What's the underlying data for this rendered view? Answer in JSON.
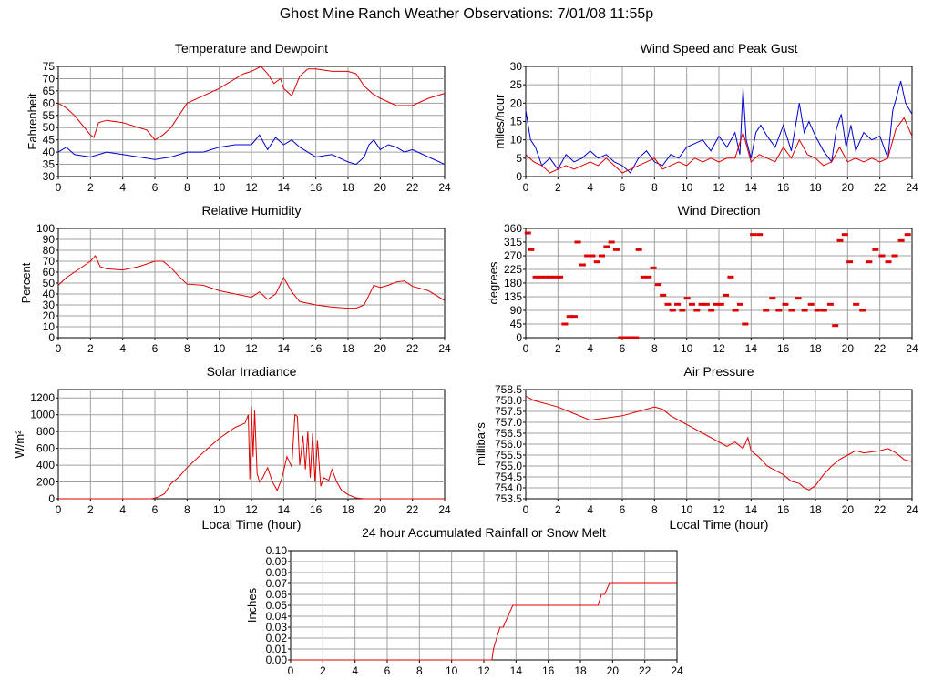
{
  "page_title": "Ghost Mine Ranch Weather Observations: 7/01/08 11:55p",
  "colors": {
    "red": "#e00000",
    "blue": "#0000d0",
    "grid": "#a0a0a0",
    "grid_minor": "#c8c8c8"
  },
  "chart_data": [
    {
      "id": "temperature",
      "type": "line",
      "title": "Temperature and Dewpoint",
      "xlabel": "",
      "ylabel": "Fahrenheit",
      "xlim": [
        0,
        24
      ],
      "ylim": [
        30,
        75
      ],
      "xticks": [
        0,
        2,
        4,
        6,
        8,
        10,
        12,
        14,
        16,
        18,
        20,
        22,
        24
      ],
      "yticks": [
        30,
        35,
        40,
        45,
        50,
        55,
        60,
        65,
        70,
        75
      ],
      "ytick_labels": [
        "30",
        "35",
        "40",
        "45",
        "50",
        "55",
        "60",
        "65",
        "70",
        "75"
      ],
      "grid": true,
      "series": [
        {
          "color": "#e00000",
          "x": [
            0,
            0.5,
            1,
            1.5,
            2,
            2.2,
            2.5,
            3,
            4,
            5,
            5.5,
            6,
            6.5,
            7,
            7.5,
            8,
            9,
            10,
            11,
            11.5,
            12,
            12.3,
            12.6,
            13,
            13.4,
            13.8,
            14,
            14.5,
            15,
            15.5,
            16,
            17,
            18,
            18.5,
            19,
            19.5,
            20,
            21,
            22,
            23,
            24
          ],
          "y": [
            60,
            58,
            55,
            51,
            47,
            46,
            52,
            53,
            52,
            50,
            49,
            45,
            47,
            50,
            55,
            60,
            63,
            66,
            70,
            72,
            73,
            74,
            75,
            72,
            68,
            70,
            66,
            63,
            71,
            74,
            74,
            73,
            73,
            72,
            67,
            64,
            62,
            59,
            59,
            62,
            64
          ]
        },
        {
          "color": "#0000d0",
          "x": [
            0,
            0.5,
            1,
            2,
            3,
            4,
            5,
            6,
            7,
            8,
            9,
            10,
            11,
            12,
            12.5,
            13,
            13.5,
            14,
            14.5,
            15,
            16,
            17,
            18,
            18.5,
            19,
            19.3,
            19.6,
            20,
            20.5,
            21,
            21.5,
            22,
            23,
            24
          ],
          "y": [
            40,
            42,
            39,
            38,
            40,
            39,
            38,
            37,
            38,
            40,
            40,
            42,
            43,
            43,
            47,
            41,
            46,
            43,
            45,
            42,
            38,
            39,
            36,
            35,
            38,
            43,
            45,
            41,
            43,
            42,
            40,
            41,
            38,
            35
          ]
        }
      ]
    },
    {
      "id": "wind",
      "type": "line",
      "title": "Wind Speed and Peak Gust",
      "xlabel": "",
      "ylabel": "miles/hour",
      "xlim": [
        0,
        24
      ],
      "ylim": [
        0,
        30
      ],
      "xticks": [
        0,
        2,
        4,
        6,
        8,
        10,
        12,
        14,
        16,
        18,
        20,
        22,
        24
      ],
      "yticks": [
        0,
        5,
        10,
        15,
        20,
        25,
        30
      ],
      "ytick_labels": [
        "0",
        "5",
        "10",
        "15",
        "20",
        "25",
        "30"
      ],
      "grid": true,
      "series": [
        {
          "color": "#0000d0",
          "x": [
            0,
            0.3,
            0.6,
            1,
            1.5,
            2,
            2.5,
            3,
            3.5,
            4,
            4.5,
            5,
            5.5,
            6,
            6.5,
            7,
            7.5,
            8,
            8.5,
            9,
            9.5,
            10,
            10.5,
            11,
            11.5,
            12,
            12.5,
            13,
            13.3,
            13.5,
            13.7,
            14,
            14.3,
            14.6,
            15,
            15.5,
            16,
            16.5,
            17,
            17.3,
            17.6,
            18,
            18.5,
            19,
            19.3,
            19.6,
            19.9,
            20.2,
            20.5,
            21,
            21.5,
            22,
            22.5,
            22.8,
            23,
            23.3,
            23.6,
            24
          ],
          "y": [
            18,
            10,
            8,
            3,
            5,
            2,
            6,
            4,
            5,
            7,
            5,
            6,
            4,
            3,
            1,
            5,
            7,
            4,
            3,
            6,
            5,
            8,
            9,
            10,
            7,
            11,
            8,
            12,
            6,
            24,
            10,
            5,
            12,
            14,
            11,
            8,
            14,
            7,
            20,
            12,
            15,
            11,
            7,
            4,
            13,
            17,
            8,
            14,
            7,
            12,
            10,
            11,
            5,
            18,
            21,
            26,
            20,
            17
          ]
        },
        {
          "color": "#e00000",
          "x": [
            0,
            0.5,
            1,
            1.5,
            2,
            2.5,
            3,
            3.5,
            4,
            4.5,
            5,
            5.5,
            6,
            6.5,
            7,
            7.5,
            8,
            8.5,
            9,
            9.5,
            10,
            10.5,
            11,
            11.5,
            12,
            12.5,
            13,
            13.5,
            14,
            14.5,
            15,
            15.5,
            16,
            16.5,
            17,
            17.5,
            18,
            18.5,
            19,
            19.5,
            20,
            20.5,
            21,
            21.5,
            22,
            22.5,
            23,
            23.5,
            24
          ],
          "y": [
            6,
            4,
            3,
            1,
            2,
            3,
            2,
            3,
            4,
            3,
            5,
            3,
            1,
            2,
            3,
            4,
            5,
            2,
            3,
            4,
            3,
            5,
            4,
            5,
            4,
            5,
            5,
            12,
            4,
            6,
            5,
            4,
            8,
            5,
            10,
            6,
            5,
            3,
            4,
            8,
            4,
            5,
            4,
            5,
            4,
            5,
            13,
            16,
            11
          ]
        }
      ]
    },
    {
      "id": "humidity",
      "type": "line",
      "title": "Relative Humidity",
      "xlabel": "",
      "ylabel": "Percent",
      "xlim": [
        0,
        24
      ],
      "ylim": [
        0,
        100
      ],
      "xticks": [
        0,
        2,
        4,
        6,
        8,
        10,
        12,
        14,
        16,
        18,
        20,
        22,
        24
      ],
      "yticks": [
        0,
        10,
        20,
        30,
        40,
        50,
        60,
        70,
        80,
        90,
        100
      ],
      "ytick_labels": [
        "0",
        "10",
        "20",
        "30",
        "40",
        "50",
        "60",
        "70",
        "80",
        "90",
        "100"
      ],
      "grid": true,
      "series": [
        {
          "color": "#e00000",
          "x": [
            0,
            0.5,
            1,
            1.5,
            2,
            2.3,
            2.6,
            3,
            4,
            5,
            6,
            6.5,
            7,
            7.5,
            8,
            9,
            10,
            11,
            12,
            12.5,
            13,
            13.5,
            14,
            14.5,
            15,
            16,
            17,
            18,
            18.5,
            19,
            19.3,
            19.6,
            20,
            20.5,
            21,
            21.5,
            22,
            23,
            24
          ],
          "y": [
            48,
            55,
            60,
            65,
            70,
            75,
            65,
            63,
            62,
            65,
            70,
            70,
            64,
            56,
            49,
            48,
            43,
            40,
            37,
            42,
            35,
            40,
            55,
            42,
            33,
            30,
            28,
            27,
            27,
            30,
            39,
            48,
            46,
            48,
            51,
            52,
            47,
            43,
            34
          ]
        }
      ]
    },
    {
      "id": "direction",
      "type": "scatter",
      "title": "Wind Direction",
      "xlabel": "",
      "ylabel": "degrees",
      "xlim": [
        0,
        24
      ],
      "ylim": [
        0,
        360
      ],
      "xticks": [
        0,
        2,
        4,
        6,
        8,
        10,
        12,
        14,
        16,
        18,
        20,
        22,
        24
      ],
      "yticks": [
        0,
        45,
        90,
        135,
        180,
        225,
        270,
        315,
        360
      ],
      "ytick_labels": [
        "0",
        "45",
        "90",
        "135",
        "180",
        "225",
        "270",
        "315",
        "360"
      ],
      "grid": true,
      "series": [
        {
          "color": "#e00000",
          "marker": "dash",
          "x": [
            0.1,
            0.3,
            0.6,
            0.9,
            1.2,
            1.5,
            1.8,
            2.1,
            2.4,
            2.7,
            3.0,
            3.2,
            3.5,
            3.8,
            4.1,
            4.4,
            4.7,
            5.0,
            5.3,
            5.6,
            5.9,
            6.2,
            6.5,
            6.8,
            7.0,
            7.3,
            7.6,
            7.9,
            8.2,
            8.5,
            8.8,
            9.1,
            9.4,
            9.7,
            10.0,
            10.3,
            10.6,
            10.9,
            11.2,
            11.5,
            11.8,
            12.1,
            12.4,
            12.7,
            13.0,
            13.3,
            13.6,
            14.1,
            14.5,
            14.9,
            15.3,
            15.7,
            16.1,
            16.5,
            16.9,
            17.3,
            17.7,
            18.1,
            18.5,
            18.9,
            19.2,
            19.5,
            19.8,
            20.1,
            20.5,
            20.9,
            21.3,
            21.7,
            22.1,
            22.5,
            22.9,
            23.3,
            23.7
          ],
          "y": [
            345,
            290,
            200,
            200,
            200,
            200,
            200,
            200,
            45,
            70,
            70,
            315,
            240,
            270,
            270,
            250,
            270,
            300,
            315,
            290,
            0,
            0,
            0,
            0,
            290,
            200,
            200,
            230,
            175,
            140,
            110,
            90,
            110,
            90,
            130,
            110,
            90,
            110,
            110,
            90,
            110,
            110,
            140,
            200,
            90,
            110,
            45,
            340,
            340,
            90,
            130,
            90,
            110,
            90,
            130,
            90,
            110,
            90,
            90,
            110,
            40,
            320,
            340,
            250,
            110,
            90,
            250,
            290,
            270,
            250,
            270,
            320,
            340
          ]
        }
      ]
    },
    {
      "id": "solar",
      "type": "line",
      "title": "Solar Irradiance",
      "xlabel": "Local Time (hour)",
      "ylabel": "W/m²",
      "xlim": [
        0,
        24
      ],
      "ylim": [
        0,
        1300
      ],
      "xticks": [
        0,
        2,
        4,
        6,
        8,
        10,
        12,
        14,
        16,
        18,
        20,
        22,
        24
      ],
      "yticks": [
        0,
        200,
        400,
        600,
        800,
        1000,
        1200
      ],
      "ytick_labels": [
        "0",
        "200",
        "400",
        "600",
        "800",
        "1000",
        "1200"
      ],
      "grid": true,
      "series": [
        {
          "color": "#e00000",
          "x": [
            0,
            5.8,
            6.2,
            6.6,
            7.0,
            7.5,
            8,
            9,
            10,
            11,
            11.6,
            11.8,
            11.9,
            12.0,
            12.1,
            12.2,
            12.35,
            12.5,
            12.7,
            13.0,
            13.3,
            13.6,
            13.9,
            14.2,
            14.5,
            14.7,
            14.85,
            15.0,
            15.2,
            15.35,
            15.5,
            15.65,
            15.8,
            15.95,
            16.1,
            16.3,
            16.5,
            16.8,
            17.0,
            17.3,
            17.6,
            18.0,
            18.5,
            19,
            20,
            24
          ],
          "y": [
            0,
            0,
            20,
            60,
            180,
            260,
            370,
            550,
            720,
            850,
            900,
            1000,
            230,
            1100,
            500,
            1050,
            300,
            200,
            250,
            370,
            200,
            100,
            250,
            500,
            380,
            1000,
            980,
            400,
            750,
            350,
            800,
            250,
            780,
            200,
            700,
            150,
            250,
            220,
            350,
            200,
            100,
            50,
            10,
            0,
            0,
            0
          ]
        }
      ]
    },
    {
      "id": "pressure",
      "type": "line",
      "title": "Air Pressure",
      "xlabel": "Local Time (hour)",
      "ylabel": "millibars",
      "xlim": [
        0,
        24
      ],
      "ylim": [
        753.5,
        758.5
      ],
      "xticks": [
        0,
        2,
        4,
        6,
        8,
        10,
        12,
        14,
        16,
        18,
        20,
        22,
        24
      ],
      "yticks": [
        753.5,
        754.0,
        754.5,
        755.0,
        755.5,
        756.0,
        756.5,
        757.0,
        757.5,
        758.0,
        758.5
      ],
      "ytick_labels": [
        "753.5",
        "754.0",
        "754.5",
        "755.0",
        "755.5",
        "756.0",
        "756.5",
        "757.0",
        "757.5",
        "758.0",
        "758.5"
      ],
      "grid": true,
      "series": [
        {
          "color": "#e00000",
          "x": [
            0,
            0.5,
            1,
            2,
            3,
            4,
            5,
            6,
            7,
            8,
            8.5,
            9,
            10,
            11,
            12,
            12.5,
            13,
            13.5,
            13.8,
            14,
            14.5,
            15,
            16,
            16.5,
            17,
            17.3,
            17.6,
            18,
            18.5,
            19,
            19.5,
            20,
            20.5,
            21,
            22,
            22.5,
            23,
            23.5,
            24
          ],
          "y": [
            758.2,
            758.0,
            757.9,
            757.7,
            757.4,
            757.1,
            757.2,
            757.3,
            757.5,
            757.7,
            757.6,
            757.3,
            756.9,
            756.5,
            756.1,
            755.9,
            756.1,
            755.8,
            756.3,
            755.7,
            755.4,
            755.0,
            754.6,
            754.3,
            754.2,
            754.0,
            753.9,
            754.1,
            754.6,
            755.0,
            755.3,
            755.5,
            755.7,
            755.6,
            755.7,
            755.8,
            755.6,
            755.3,
            755.2
          ]
        }
      ]
    },
    {
      "id": "rainfall",
      "type": "line",
      "title": "24 hour Accumulated Rainfall or Snow Melt",
      "xlabel": "",
      "ylabel": "Inches",
      "xlim": [
        0,
        24
      ],
      "ylim": [
        0,
        0.1
      ],
      "xticks": [
        0,
        2,
        4,
        6,
        8,
        10,
        12,
        14,
        16,
        18,
        20,
        22,
        24
      ],
      "yticks": [
        0,
        0.01,
        0.02,
        0.03,
        0.04,
        0.05,
        0.06,
        0.07,
        0.08,
        0.09,
        0.1
      ],
      "ytick_labels": [
        "0.00",
        "0.01",
        "0.02",
        "0.03",
        "0.04",
        "0.05",
        "0.06",
        "0.07",
        "0.08",
        "0.09",
        "0.10"
      ],
      "grid": true,
      "series": [
        {
          "color": "#e00000",
          "x": [
            0,
            12.5,
            12.6,
            12.8,
            13.0,
            13.2,
            13.5,
            13.8,
            14.0,
            18.0,
            18.6,
            19.1,
            19.3,
            19.5,
            19.8,
            24
          ],
          "y": [
            0,
            0,
            0.01,
            0.02,
            0.03,
            0.03,
            0.04,
            0.05,
            0.05,
            0.05,
            0.05,
            0.05,
            0.06,
            0.06,
            0.07,
            0.07
          ]
        }
      ]
    }
  ]
}
